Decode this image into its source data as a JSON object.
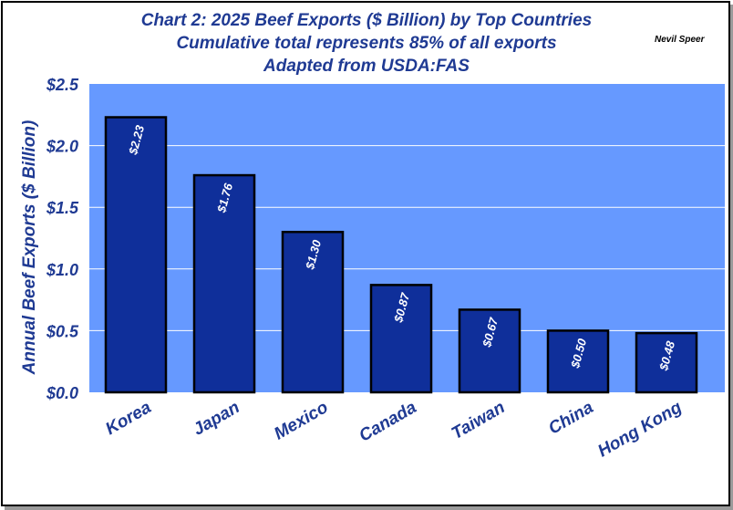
{
  "header": {
    "title_line1": "Chart 2:  2025 Beef Exports ($ Billion) by Top Countries",
    "title_line2": "Cumulative total represents 85% of all exports",
    "title_line3": "Adapted from USDA:FAS",
    "author": "Nevil Speer"
  },
  "colors": {
    "plot_background": "#6699ff",
    "bar_fill": "#0f2f9a",
    "bar_outline": "#000000",
    "text": "#1f3a93",
    "gridline": "#ffffff"
  },
  "chart_data": {
    "type": "bar",
    "title": "Chart 2:  2025 Beef Exports ($ Billion) by Top Countries",
    "subtitle": "Cumulative total represents 85% of all exports",
    "source": "Adapted from USDA:FAS",
    "xlabel": "",
    "ylabel": "Annual Beef Exports ($ Billion)",
    "categories": [
      "Korea",
      "Japan",
      "Mexico",
      "Canada",
      "Taiwan",
      "China",
      "Hong Kong"
    ],
    "values": [
      2.23,
      1.76,
      1.3,
      0.87,
      0.67,
      0.5,
      0.48
    ],
    "data_labels": [
      "$2.23",
      "$1.76",
      "$1.30",
      "$0.87",
      "$0.67",
      "$0.50",
      "$0.48"
    ],
    "ylim": [
      0,
      2.5
    ],
    "yticks": [
      0,
      0.5,
      1.0,
      1.5,
      2.0,
      2.5
    ],
    "ytick_labels": [
      "$0.0",
      "$0.5",
      "$1.0",
      "$1.5",
      "$2.0",
      "$2.5"
    ],
    "grid": true,
    "legend": "none"
  }
}
